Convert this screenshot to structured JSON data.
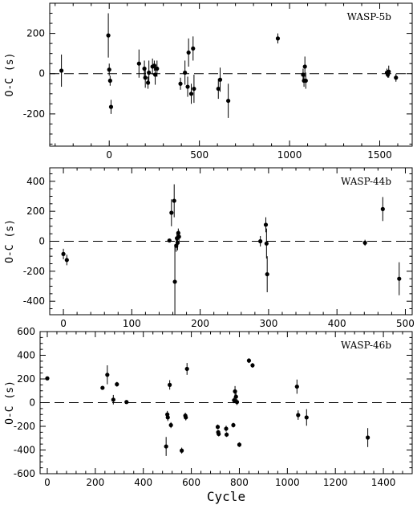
{
  "chart_data": [
    {
      "type": "scatter",
      "label": "WASP-5b",
      "ylabel": "O-C (s)",
      "xlabel": "",
      "xlim": [
        -330,
        1680
      ],
      "ylim": [
        -360,
        350
      ],
      "xticks": [
        0,
        500,
        1000,
        1500
      ],
      "yticks": [
        -200,
        0,
        200
      ],
      "reference_line": 0,
      "points": [
        {
          "x": -265,
          "y": 15,
          "err": 80
        },
        {
          "x": -5,
          "y": 190,
          "err": 110
        },
        {
          "x": 0,
          "y": 20,
          "err": 30
        },
        {
          "x": 5,
          "y": -35,
          "err": 25
        },
        {
          "x": 10,
          "y": -165,
          "err": 35
        },
        {
          "x": 165,
          "y": 50,
          "err": 70
        },
        {
          "x": 195,
          "y": 25,
          "err": 40
        },
        {
          "x": 200,
          "y": -20,
          "err": 50
        },
        {
          "x": 215,
          "y": -45,
          "err": 30
        },
        {
          "x": 220,
          "y": 5,
          "err": 60
        },
        {
          "x": 240,
          "y": 35,
          "err": 40
        },
        {
          "x": 250,
          "y": 40,
          "err": 25
        },
        {
          "x": 255,
          "y": -5,
          "err": 50
        },
        {
          "x": 265,
          "y": 25,
          "err": 40
        },
        {
          "x": 395,
          "y": -50,
          "err": 30
        },
        {
          "x": 420,
          "y": 5,
          "err": 60
        },
        {
          "x": 435,
          "y": -65,
          "err": 50
        },
        {
          "x": 440,
          "y": 105,
          "err": 70
        },
        {
          "x": 455,
          "y": -100,
          "err": 50
        },
        {
          "x": 465,
          "y": 125,
          "err": 60
        },
        {
          "x": 470,
          "y": -75,
          "err": 70
        },
        {
          "x": 605,
          "y": -75,
          "err": 50
        },
        {
          "x": 615,
          "y": -30,
          "err": 60
        },
        {
          "x": 660,
          "y": -135,
          "err": 85
        },
        {
          "x": 935,
          "y": 175,
          "err": 25
        },
        {
          "x": 1075,
          "y": -5,
          "err": 30
        },
        {
          "x": 1080,
          "y": -35,
          "err": 30
        },
        {
          "x": 1085,
          "y": 35,
          "err": 50
        },
        {
          "x": 1090,
          "y": -35,
          "err": 40
        },
        {
          "x": 1540,
          "y": 5,
          "err": 20
        },
        {
          "x": 1545,
          "y": -5,
          "err": 15
        },
        {
          "x": 1550,
          "y": 10,
          "err": 30
        },
        {
          "x": 1590,
          "y": -20,
          "err": 20
        }
      ]
    },
    {
      "type": "scatter",
      "label": "WASP-44b",
      "ylabel": "O-C (s)",
      "xlabel": "",
      "xlim": [
        -20,
        510
      ],
      "ylim": [
        -490,
        490
      ],
      "xticks": [
        0,
        100,
        200,
        300,
        400,
        500
      ],
      "yticks": [
        -400,
        -200,
        0,
        200,
        400
      ],
      "reference_line": 0,
      "points": [
        {
          "x": 0,
          "y": -85,
          "err": 35
        },
        {
          "x": 5,
          "y": -125,
          "err": 35
        },
        {
          "x": 155,
          "y": 5,
          "err": 10
        },
        {
          "x": 158,
          "y": 190,
          "err": 90
        },
        {
          "x": 162,
          "y": 270,
          "err": 110
        },
        {
          "x": 163,
          "y": -270,
          "err": 250
        },
        {
          "x": 165,
          "y": -30,
          "err": 40
        },
        {
          "x": 166,
          "y": 20,
          "err": 40
        },
        {
          "x": 167,
          "y": -10,
          "err": 50
        },
        {
          "x": 168,
          "y": 55,
          "err": 30
        },
        {
          "x": 169,
          "y": 30,
          "err": 40
        },
        {
          "x": 288,
          "y": 0,
          "err": 35
        },
        {
          "x": 296,
          "y": 110,
          "err": 50
        },
        {
          "x": 297,
          "y": -15,
          "err": 100
        },
        {
          "x": 298,
          "y": -220,
          "err": 120
        },
        {
          "x": 441,
          "y": -10,
          "err": 20
        },
        {
          "x": 467,
          "y": 215,
          "err": 80
        },
        {
          "x": 491,
          "y": -250,
          "err": 110
        }
      ]
    },
    {
      "type": "scatter",
      "label": "WASP-46b",
      "ylabel": "O-C (s)",
      "xlabel": "Cycle",
      "xlim": [
        -30,
        1520
      ],
      "ylim": [
        -600,
        600
      ],
      "xticks": [
        0,
        200,
        400,
        600,
        800,
        1000,
        1200,
        1400
      ],
      "yticks": [
        -600,
        -400,
        -200,
        0,
        200,
        400,
        600
      ],
      "reference_line": 0,
      "points": [
        {
          "x": 0,
          "y": 205,
          "err": 15
        },
        {
          "x": 230,
          "y": 125,
          "err": 15
        },
        {
          "x": 250,
          "y": 235,
          "err": 80
        },
        {
          "x": 275,
          "y": 25,
          "err": 40
        },
        {
          "x": 290,
          "y": 155,
          "err": 20
        },
        {
          "x": 330,
          "y": 5,
          "err": 15
        },
        {
          "x": 495,
          "y": -370,
          "err": 80
        },
        {
          "x": 500,
          "y": -100,
          "err": 30
        },
        {
          "x": 502,
          "y": -125,
          "err": 30
        },
        {
          "x": 510,
          "y": 150,
          "err": 40
        },
        {
          "x": 515,
          "y": -190,
          "err": 25
        },
        {
          "x": 560,
          "y": -405,
          "err": 25
        },
        {
          "x": 575,
          "y": -110,
          "err": 25
        },
        {
          "x": 577,
          "y": -125,
          "err": 25
        },
        {
          "x": 582,
          "y": 285,
          "err": 50
        },
        {
          "x": 710,
          "y": -205,
          "err": 20
        },
        {
          "x": 712,
          "y": -250,
          "err": 20
        },
        {
          "x": 714,
          "y": -265,
          "err": 20
        },
        {
          "x": 745,
          "y": -220,
          "err": 25
        },
        {
          "x": 747,
          "y": -270,
          "err": 20
        },
        {
          "x": 775,
          "y": -190,
          "err": 20
        },
        {
          "x": 778,
          "y": 20,
          "err": 25
        },
        {
          "x": 782,
          "y": 95,
          "err": 45
        },
        {
          "x": 786,
          "y": 50,
          "err": 40
        },
        {
          "x": 790,
          "y": 5,
          "err": 25
        },
        {
          "x": 800,
          "y": -355,
          "err": 20
        },
        {
          "x": 840,
          "y": 355,
          "err": 20
        },
        {
          "x": 855,
          "y": 315,
          "err": 20
        },
        {
          "x": 1040,
          "y": 135,
          "err": 60
        },
        {
          "x": 1045,
          "y": -105,
          "err": 40
        },
        {
          "x": 1080,
          "y": -125,
          "err": 70
        },
        {
          "x": 1335,
          "y": -295,
          "err": 80
        }
      ]
    }
  ]
}
